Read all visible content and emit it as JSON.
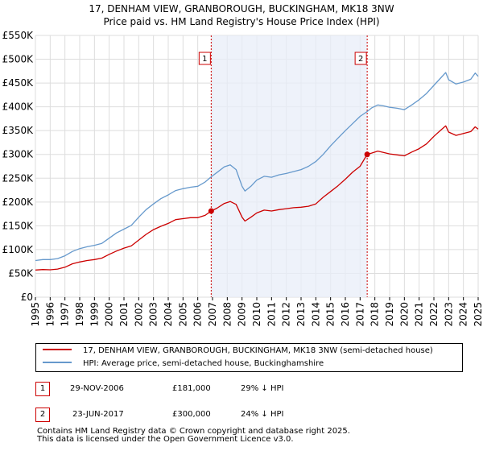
{
  "title_lines": [
    "17, DENHAM VIEW, GRANBOROUGH, BUCKINGHAM, MK18 3NW",
    "Price paid vs. HM Land Registry's House Price Index (HPI)"
  ],
  "colors": {
    "property": "#cc0000",
    "hpi": "#6699cc",
    "shade": "#e8eef8",
    "grid": "#dddddd",
    "marker_line": "#cc0000"
  },
  "chart_data": {
    "type": "line",
    "title": "17, DENHAM VIEW, GRANBOROUGH, BUCKINGHAM, MK18 3NW — Price paid vs. HM Land Registry's House Price Index (HPI)",
    "xlabel": "",
    "ylabel": "",
    "xlim": [
      1995,
      2025
    ],
    "ylim": [
      0,
      550000
    ],
    "x_ticks": [
      "1995",
      "1996",
      "1997",
      "1998",
      "1999",
      "2000",
      "2001",
      "2002",
      "2003",
      "2004",
      "2005",
      "2006",
      "2007",
      "2008",
      "2009",
      "2010",
      "2011",
      "2012",
      "2013",
      "2014",
      "2015",
      "2016",
      "2017",
      "2018",
      "2019",
      "2020",
      "2021",
      "2022",
      "2023",
      "2024",
      "2025"
    ],
    "y_ticks": [
      {
        "value": 0,
        "label": "£0"
      },
      {
        "value": 50000,
        "label": "£50K"
      },
      {
        "value": 100000,
        "label": "£100K"
      },
      {
        "value": 150000,
        "label": "£150K"
      },
      {
        "value": 200000,
        "label": "£200K"
      },
      {
        "value": 250000,
        "label": "£250K"
      },
      {
        "value": 300000,
        "label": "£300K"
      },
      {
        "value": 350000,
        "label": "£350K"
      },
      {
        "value": 400000,
        "label": "£400K"
      },
      {
        "value": 450000,
        "label": "£450K"
      },
      {
        "value": 500000,
        "label": "£500K"
      },
      {
        "value": 550000,
        "label": "£550K"
      }
    ],
    "grid": true,
    "shaded_range": [
      2006.91,
      2017.48
    ],
    "markers": [
      {
        "label": "1",
        "x": 2006.91,
        "y": 181000
      },
      {
        "label": "2",
        "x": 2017.48,
        "y": 300000
      }
    ],
    "series": [
      {
        "name": "17, DENHAM VIEW, GRANBOROUGH, BUCKINGHAM, MK18 3NW (semi-detached house)",
        "points": [
          [
            1995.0,
            57000
          ],
          [
            1995.5,
            58000
          ],
          [
            1996.0,
            57500
          ],
          [
            1996.5,
            59000
          ],
          [
            1997.0,
            63000
          ],
          [
            1997.5,
            70000
          ],
          [
            1998.0,
            74000
          ],
          [
            1998.5,
            77000
          ],
          [
            1999.0,
            79000
          ],
          [
            1999.5,
            82000
          ],
          [
            2000.0,
            90000
          ],
          [
            2000.5,
            97000
          ],
          [
            2001.0,
            103000
          ],
          [
            2001.5,
            108000
          ],
          [
            2002.0,
            120000
          ],
          [
            2002.5,
            132000
          ],
          [
            2003.0,
            142000
          ],
          [
            2003.5,
            149000
          ],
          [
            2004.0,
            155000
          ],
          [
            2004.5,
            163000
          ],
          [
            2005.0,
            165000
          ],
          [
            2005.5,
            167000
          ],
          [
            2006.0,
            167000
          ],
          [
            2006.5,
            172000
          ],
          [
            2006.91,
            181000
          ],
          [
            2007.3,
            187000
          ],
          [
            2007.8,
            197000
          ],
          [
            2008.2,
            201000
          ],
          [
            2008.6,
            195000
          ],
          [
            2009.0,
            168000
          ],
          [
            2009.2,
            160000
          ],
          [
            2009.6,
            168000
          ],
          [
            2010.0,
            177000
          ],
          [
            2010.5,
            183000
          ],
          [
            2011.0,
            181000
          ],
          [
            2011.5,
            184000
          ],
          [
            2012.0,
            186000
          ],
          [
            2012.5,
            188000
          ],
          [
            2013.0,
            189000
          ],
          [
            2013.5,
            191000
          ],
          [
            2014.0,
            196000
          ],
          [
            2014.5,
            210000
          ],
          [
            2015.0,
            222000
          ],
          [
            2015.5,
            234000
          ],
          [
            2016.0,
            248000
          ],
          [
            2016.5,
            263000
          ],
          [
            2017.0,
            275000
          ],
          [
            2017.48,
            300000
          ],
          [
            2017.8,
            303000
          ],
          [
            2018.2,
            307000
          ],
          [
            2018.6,
            304000
          ],
          [
            2019.0,
            301000
          ],
          [
            2019.5,
            299000
          ],
          [
            2020.0,
            297000
          ],
          [
            2020.5,
            305000
          ],
          [
            2021.0,
            312000
          ],
          [
            2021.5,
            322000
          ],
          [
            2022.0,
            338000
          ],
          [
            2022.5,
            352000
          ],
          [
            2022.8,
            360000
          ],
          [
            2023.0,
            347000
          ],
          [
            2023.5,
            340000
          ],
          [
            2024.0,
            344000
          ],
          [
            2024.5,
            348000
          ],
          [
            2024.8,
            358000
          ],
          [
            2025.0,
            353000
          ]
        ]
      },
      {
        "name": "HPI: Average price, semi-detached house, Buckinghamshire",
        "points": [
          [
            1995.0,
            77000
          ],
          [
            1995.5,
            79000
          ],
          [
            1996.0,
            79000
          ],
          [
            1996.5,
            81000
          ],
          [
            1997.0,
            87000
          ],
          [
            1997.5,
            96000
          ],
          [
            1998.0,
            102000
          ],
          [
            1998.5,
            106000
          ],
          [
            1999.0,
            109000
          ],
          [
            1999.5,
            113000
          ],
          [
            2000.0,
            124000
          ],
          [
            2000.5,
            135000
          ],
          [
            2001.0,
            143000
          ],
          [
            2001.5,
            151000
          ],
          [
            2002.0,
            168000
          ],
          [
            2002.5,
            184000
          ],
          [
            2003.0,
            196000
          ],
          [
            2003.5,
            207000
          ],
          [
            2004.0,
            215000
          ],
          [
            2004.5,
            224000
          ],
          [
            2005.0,
            228000
          ],
          [
            2005.5,
            231000
          ],
          [
            2006.0,
            233000
          ],
          [
            2006.5,
            242000
          ],
          [
            2006.91,
            253000
          ],
          [
            2007.3,
            262000
          ],
          [
            2007.8,
            274000
          ],
          [
            2008.2,
            278000
          ],
          [
            2008.6,
            268000
          ],
          [
            2009.0,
            233000
          ],
          [
            2009.2,
            223000
          ],
          [
            2009.6,
            233000
          ],
          [
            2010.0,
            246000
          ],
          [
            2010.5,
            254000
          ],
          [
            2011.0,
            252000
          ],
          [
            2011.5,
            257000
          ],
          [
            2012.0,
            260000
          ],
          [
            2012.5,
            264000
          ],
          [
            2013.0,
            268000
          ],
          [
            2013.5,
            275000
          ],
          [
            2014.0,
            285000
          ],
          [
            2014.5,
            300000
          ],
          [
            2015.0,
            318000
          ],
          [
            2015.5,
            334000
          ],
          [
            2016.0,
            350000
          ],
          [
            2016.5,
            365000
          ],
          [
            2017.0,
            380000
          ],
          [
            2017.48,
            390000
          ],
          [
            2017.8,
            398000
          ],
          [
            2018.2,
            404000
          ],
          [
            2018.6,
            402000
          ],
          [
            2019.0,
            399000
          ],
          [
            2019.5,
            397000
          ],
          [
            2020.0,
            394000
          ],
          [
            2020.5,
            404000
          ],
          [
            2021.0,
            415000
          ],
          [
            2021.5,
            428000
          ],
          [
            2022.0,
            445000
          ],
          [
            2022.5,
            462000
          ],
          [
            2022.8,
            472000
          ],
          [
            2023.0,
            457000
          ],
          [
            2023.5,
            448000
          ],
          [
            2024.0,
            452000
          ],
          [
            2024.5,
            458000
          ],
          [
            2024.8,
            471000
          ],
          [
            2025.0,
            464000
          ]
        ]
      }
    ]
  },
  "legend": {
    "property_label": "17, DENHAM VIEW, GRANBOROUGH, BUCKINGHAM, MK18 3NW (semi-detached house)",
    "hpi_label": "HPI: Average price, semi-detached house, Buckinghamshire"
  },
  "sales": [
    {
      "num": "1",
      "date": "29-NOV-2006",
      "price": "£181,000",
      "hpi": "29% ↓ HPI"
    },
    {
      "num": "2",
      "date": "23-JUN-2017",
      "price": "£300,000",
      "hpi": "24% ↓ HPI"
    }
  ],
  "footer": [
    "Contains HM Land Registry data © Crown copyright and database right 2025.",
    "This data is licensed under the Open Government Licence v3.0."
  ]
}
